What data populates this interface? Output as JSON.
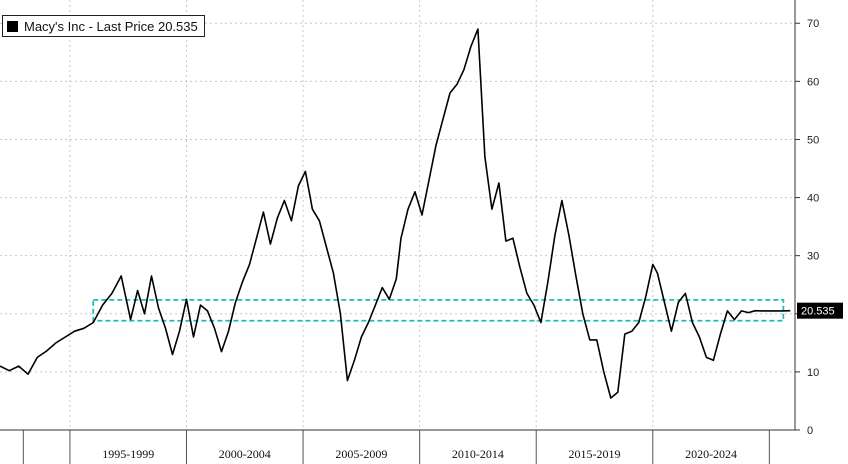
{
  "chart_data": {
    "type": "line",
    "title": "",
    "xlabel": "",
    "ylabel": "",
    "legend": {
      "label": "Macy's Inc - Last Price 20.535",
      "placement": "top-left"
    },
    "ylim": [
      0,
      74
    ],
    "yticks": [
      0,
      10,
      20,
      30,
      40,
      50,
      60,
      70
    ],
    "xlim": [
      1992.0,
      2026.1
    ],
    "x_groups": [
      {
        "label": "1995-1999",
        "start": 1995,
        "end": 2000
      },
      {
        "label": "2000-2004",
        "start": 2000,
        "end": 2005
      },
      {
        "label": "2005-2009",
        "start": 2005,
        "end": 2010
      },
      {
        "label": "2010-2014",
        "start": 2010,
        "end": 2015
      },
      {
        "label": "2015-2019",
        "start": 2015,
        "end": 2020
      },
      {
        "label": "2020-2024",
        "start": 2020,
        "end": 2025
      }
    ],
    "last_price": {
      "value": 20.535,
      "label": "20.535"
    },
    "band": {
      "low": 18.8,
      "high": 22.4,
      "x_start": 1996.0,
      "x_end": 2025.6,
      "color": "#1fc0b0"
    },
    "grid": true,
    "line_color": "#000000",
    "series": [
      {
        "x": [
          1992.0,
          1992.4,
          1992.8,
          1993.2,
          1993.6,
          1994.0,
          1994.4,
          1994.8,
          1995.2,
          1995.6,
          1996.0,
          1996.4,
          1996.8,
          1997.2,
          1997.6,
          1997.9,
          1998.2,
          1998.5,
          1998.8,
          1999.1,
          1999.4,
          1999.7,
          2000.0,
          2000.3,
          2000.6,
          2000.9,
          2001.2,
          2001.5,
          2001.8,
          2002.1,
          2002.4,
          2002.7,
          2003.0,
          2003.3,
          2003.6,
          2003.9,
          2004.2,
          2004.5,
          2004.8,
          2005.1,
          2005.4,
          2005.7,
          2006.0,
          2006.3,
          2006.6,
          2006.9,
          2007.2,
          2007.5,
          2007.8,
          2008.1,
          2008.4,
          2008.7,
          2009.0,
          2009.2,
          2009.5,
          2009.8,
          2010.1,
          2010.4,
          2010.7,
          2011.0,
          2011.3,
          2011.6,
          2011.9,
          2012.2,
          2012.5,
          2012.8,
          2013.1,
          2013.4,
          2013.7,
          2014.0,
          2014.3,
          2014.6,
          2014.9,
          2015.2,
          2015.5,
          2015.8,
          2016.1,
          2016.4,
          2016.7,
          2017.0,
          2017.3,
          2017.6,
          2017.9,
          2018.2,
          2018.5,
          2018.8,
          2019.1,
          2019.4,
          2019.7,
          2020.0,
          2020.2,
          2020.5,
          2020.8,
          2021.1,
          2021.4,
          2021.7,
          2022.0,
          2022.3,
          2022.6,
          2022.9,
          2023.2,
          2023.5,
          2023.8,
          2024.1,
          2024.4,
          2024.7,
          2025.0,
          2025.3,
          2025.6,
          2025.9
        ],
        "values": [
          11.0,
          10.2,
          11.0,
          9.6,
          12.5,
          13.6,
          15.0,
          16.0,
          17.0,
          17.5,
          18.5,
          21.5,
          23.5,
          26.5,
          19.0,
          24.0,
          20.0,
          26.5,
          21.0,
          17.5,
          13.0,
          17.0,
          22.5,
          16.0,
          21.5,
          20.5,
          17.5,
          13.5,
          17.0,
          22.0,
          25.5,
          28.5,
          33.0,
          37.5,
          32.0,
          36.5,
          39.5,
          36.0,
          42.0,
          44.5,
          38.0,
          36.0,
          31.5,
          27.0,
          20.0,
          8.5,
          12.0,
          16.0,
          18.5,
          21.5,
          24.5,
          22.5,
          26.0,
          33.0,
          38.0,
          41.0,
          37.0,
          43.0,
          49.0,
          53.5,
          58.0,
          59.5,
          62.0,
          66.0,
          69.0,
          47.0,
          38.0,
          42.5,
          32.5,
          33.0,
          28.0,
          23.5,
          21.5,
          18.5,
          25.5,
          33.5,
          39.5,
          33.5,
          26.5,
          20.0,
          15.5,
          15.5,
          10.0,
          5.5,
          6.5,
          16.5,
          17.0,
          18.5,
          23.0,
          28.5,
          27.0,
          22.0,
          17.0,
          22.0,
          23.5,
          18.5,
          16.0,
          12.5,
          12.0,
          16.5,
          20.5,
          19.0,
          20.5,
          20.2,
          20.535,
          20.5,
          20.5,
          20.5,
          20.5,
          20.535
        ]
      }
    ]
  }
}
